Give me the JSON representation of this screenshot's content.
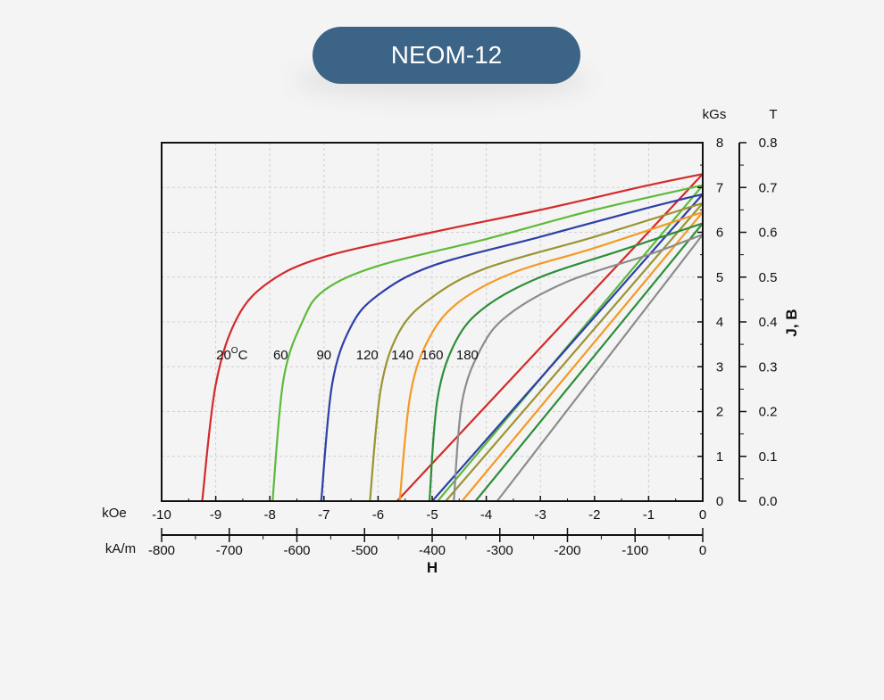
{
  "title": "NEOM-12",
  "chart_data": {
    "type": "line",
    "x_axis_primary": {
      "unit": "kOe",
      "range": [
        -10,
        0
      ],
      "ticks": [
        "-10",
        "-9",
        "-8",
        "-7",
        "-6",
        "-5",
        "-4",
        "-3",
        "-2",
        "-1",
        "0"
      ]
    },
    "x_axis_secondary": {
      "unit": "kA/m",
      "range": [
        -800,
        0
      ],
      "ticks": [
        "-800",
        "-700",
        "-600",
        "-500",
        "-400",
        "-300",
        "-200",
        "-100",
        "0"
      ]
    },
    "xlabel": "H",
    "y_axis_left": {
      "unit": "kGs",
      "range": [
        0,
        8
      ],
      "ticks": [
        "0",
        "1",
        "2",
        "3",
        "4",
        "5",
        "6",
        "7",
        "8"
      ]
    },
    "y_axis_right": {
      "unit": "T",
      "range": [
        0,
        0.8
      ],
      "ticks": [
        "0.0",
        "0.1",
        "0.2",
        "0.3",
        "0.4",
        "0.5",
        "0.6",
        "0.7",
        "0.8"
      ]
    },
    "ylabel": "J, B",
    "grid": true,
    "series": [
      {
        "name": "20°C",
        "label_text": "20",
        "label_sup": "O",
        "label_suffix": "C",
        "label_x": -8.7,
        "color": "#d42a2a",
        "Br": 7.3,
        "Hcj": -9.25,
        "Hcb": -5.65,
        "J": [
          [
            -9.25,
            0
          ],
          [
            -9.0,
            2.6
          ],
          [
            -8.6,
            4.1
          ],
          [
            -8,
            4.9
          ],
          [
            -7,
            5.45
          ],
          [
            -5,
            6.0
          ],
          [
            -3,
            6.5
          ],
          [
            -1,
            7.05
          ],
          [
            0,
            7.3
          ]
        ],
        "B": [
          [
            -5.65,
            0
          ],
          [
            0,
            7.3
          ]
        ]
      },
      {
        "name": "60",
        "label_text": "60",
        "label_x": -7.8,
        "color": "#5dbb3b",
        "Br": 7.05,
        "Hcj": -7.95,
        "Hcb": -4.9,
        "J": [
          [
            -7.95,
            0
          ],
          [
            -7.75,
            2.7
          ],
          [
            -7.4,
            4.0
          ],
          [
            -7,
            4.7
          ],
          [
            -6,
            5.25
          ],
          [
            -4,
            5.85
          ],
          [
            -2,
            6.5
          ],
          [
            0,
            7.05
          ]
        ],
        "B": [
          [
            -4.9,
            0
          ],
          [
            0,
            7.05
          ]
        ]
      },
      {
        "name": "90",
        "label_text": "90",
        "label_x": -7.0,
        "color": "#2e3fa8",
        "Br": 6.85,
        "Hcj": -7.05,
        "Hcb": -5.0,
        "J": [
          [
            -7.05,
            0
          ],
          [
            -6.85,
            2.6
          ],
          [
            -6.5,
            3.9
          ],
          [
            -6,
            4.6
          ],
          [
            -5,
            5.25
          ],
          [
            -3,
            5.9
          ],
          [
            -1,
            6.55
          ],
          [
            0,
            6.85
          ]
        ],
        "B": [
          [
            -5.0,
            0
          ],
          [
            0,
            6.85
          ]
        ]
      },
      {
        "name": "120",
        "label_text": "120",
        "label_x": -6.2,
        "color": "#9a9432",
        "Br": 6.65,
        "Hcj": -6.15,
        "Hcb": -4.75,
        "J": [
          [
            -6.15,
            0
          ],
          [
            -5.95,
            2.5
          ],
          [
            -5.6,
            3.8
          ],
          [
            -5,
            4.55
          ],
          [
            -4,
            5.2
          ],
          [
            -2,
            5.9
          ],
          [
            0,
            6.65
          ]
        ],
        "B": [
          [
            -4.75,
            0
          ],
          [
            0,
            6.65
          ]
        ]
      },
      {
        "name": "140",
        "label_text": "140",
        "label_x": -5.55,
        "color": "#f49a24",
        "Br": 6.45,
        "Hcj": -5.6,
        "Hcb": -4.45,
        "J": [
          [
            -5.6,
            0
          ],
          [
            -5.4,
            2.4
          ],
          [
            -5.05,
            3.65
          ],
          [
            -4.5,
            4.45
          ],
          [
            -3.5,
            5.1
          ],
          [
            -2,
            5.65
          ],
          [
            0,
            6.45
          ]
        ],
        "B": [
          [
            -4.45,
            0
          ],
          [
            0,
            6.45
          ]
        ]
      },
      {
        "name": "160",
        "label_text": "160",
        "label_x": -5.0,
        "color": "#2d8f3a",
        "Br": 6.2,
        "Hcj": -5.05,
        "Hcb": -4.2,
        "J": [
          [
            -5.05,
            0
          ],
          [
            -4.9,
            2.3
          ],
          [
            -4.55,
            3.6
          ],
          [
            -4,
            4.35
          ],
          [
            -3,
            5.0
          ],
          [
            -1.5,
            5.6
          ],
          [
            0,
            6.2
          ]
        ],
        "B": [
          [
            -4.2,
            0
          ],
          [
            0,
            6.2
          ]
        ]
      },
      {
        "name": "180",
        "label_text": "180",
        "label_x": -4.35,
        "color": "#8c8c8c",
        "Br": 5.95,
        "Hcj": -4.6,
        "Hcb": -3.8,
        "J": [
          [
            -4.6,
            0
          ],
          [
            -4.45,
            2.2
          ],
          [
            -4.1,
            3.4
          ],
          [
            -3.6,
            4.15
          ],
          [
            -2.5,
            4.9
          ],
          [
            -1,
            5.5
          ],
          [
            0,
            5.95
          ]
        ],
        "B": [
          [
            -3.8,
            0
          ],
          [
            0,
            5.95
          ]
        ]
      }
    ]
  }
}
